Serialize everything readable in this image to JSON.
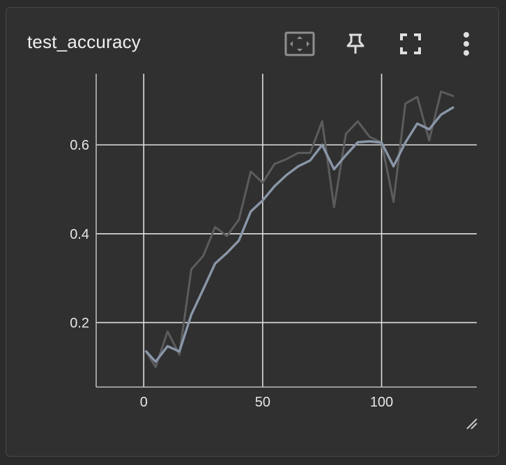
{
  "card": {
    "title": "test_accuracy",
    "icons": [
      "fit-domain-icon",
      "pin-icon",
      "fullscreen-icon",
      "more-vert-icon",
      "resize-handle-icon"
    ]
  },
  "colors": {
    "background": "#2b2b2b",
    "card": "#303030",
    "grid": "#e0e0e0",
    "raw_line": "#5b5c5e",
    "smoothed_line": "#8a96a8"
  },
  "chart_data": {
    "type": "line",
    "title": "test_accuracy",
    "xlabel": "",
    "ylabel": "",
    "xlim": [
      -20,
      140
    ],
    "ylim": [
      0.055,
      0.76
    ],
    "x_ticks": [
      0,
      50,
      100
    ],
    "y_ticks": [
      0.2,
      0.4,
      0.6
    ],
    "x_tick_labels": [
      "0",
      "50",
      "100"
    ],
    "y_tick_labels": [
      "0.2",
      "0.4",
      "0.6"
    ],
    "grid": true,
    "series": [
      {
        "role": "raw",
        "color": "#5b5c5e",
        "x": [
          1,
          5,
          10,
          15,
          20,
          25,
          30,
          35,
          40,
          45,
          50,
          55,
          60,
          65,
          70,
          75,
          80,
          85,
          90,
          95,
          100,
          105,
          110,
          115,
          120,
          125,
          130
        ],
        "y": [
          0.135,
          0.1,
          0.18,
          0.128,
          0.32,
          0.35,
          0.415,
          0.395,
          0.432,
          0.54,
          0.515,
          0.557,
          0.568,
          0.582,
          0.582,
          0.653,
          0.46,
          0.625,
          0.653,
          0.618,
          0.605,
          0.472,
          0.693,
          0.708,
          0.61,
          0.72,
          0.71
        ]
      },
      {
        "role": "smoothed",
        "color": "#8a96a8",
        "x": [
          1,
          5,
          10,
          15,
          20,
          25,
          30,
          35,
          40,
          45,
          50,
          55,
          60,
          65,
          70,
          75,
          80,
          85,
          90,
          95,
          100,
          105,
          110,
          115,
          120,
          125,
          130
        ],
        "y": [
          0.135,
          0.112,
          0.147,
          0.135,
          0.218,
          0.275,
          0.333,
          0.357,
          0.385,
          0.45,
          0.475,
          0.507,
          0.532,
          0.552,
          0.565,
          0.6,
          0.545,
          0.577,
          0.606,
          0.608,
          0.605,
          0.552,
          0.605,
          0.648,
          0.635,
          0.668,
          0.684
        ]
      }
    ]
  }
}
